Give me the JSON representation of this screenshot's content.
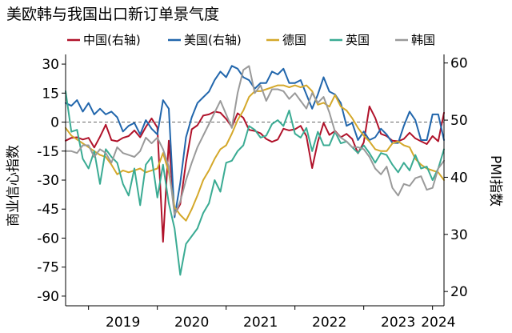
{
  "chart_data": {
    "type": "line",
    "title": "美欧韩与我国出口新订单景气度",
    "ylabel_left": "商业信心指数",
    "ylabel_right": "PMI指数",
    "ylim_left": [
      -95,
      35
    ],
    "yticks_left": [
      30,
      15,
      0,
      -15,
      -30,
      -45,
      -60,
      -75,
      -90
    ],
    "ylim_right": [
      17.5,
      61.5
    ],
    "yticks_right": [
      60,
      50,
      40,
      30,
      20
    ],
    "x_start": "2018-09",
    "x_end": "2024-03",
    "xticks": [
      "2019",
      "2020",
      "2021",
      "2022",
      "2023",
      "2024"
    ],
    "reference_line_left": 0,
    "legend_placement": "top",
    "series": [
      {
        "name": "中国(右轴)",
        "axis": "right",
        "color": "#b0122a",
        "dates": [
          "2018-09",
          "2018-10",
          "2018-11",
          "2018-12",
          "2019-01",
          "2019-02",
          "2019-03",
          "2019-04",
          "2019-05",
          "2019-06",
          "2019-07",
          "2019-08",
          "2019-09",
          "2019-10",
          "2019-11",
          "2019-12",
          "2020-01",
          "2020-02",
          "2020-03",
          "2020-04",
          "2020-05",
          "2020-06",
          "2020-07",
          "2020-08",
          "2020-09",
          "2020-10",
          "2020-11",
          "2020-12",
          "2021-01",
          "2021-02",
          "2021-03",
          "2021-04",
          "2021-05",
          "2021-06",
          "2021-07",
          "2021-08",
          "2021-09",
          "2021-10",
          "2021-11",
          "2021-12",
          "2022-01",
          "2022-02",
          "2022-03",
          "2022-04",
          "2022-05",
          "2022-06",
          "2022-07",
          "2022-08",
          "2022-09",
          "2022-10",
          "2022-11",
          "2022-12",
          "2023-01",
          "2023-02",
          "2023-03",
          "2023-04",
          "2023-05",
          "2023-06",
          "2023-07",
          "2023-08",
          "2023-09",
          "2023-10",
          "2023-11",
          "2023-12",
          "2024-01",
          "2024-02",
          "2024-03"
        ],
        "values": [
          46.4,
          46.9,
          47.0,
          46.6,
          46.9,
          45.2,
          47.1,
          49.2,
          46.5,
          46.3,
          46.9,
          47.2,
          48.2,
          47.0,
          48.8,
          50.3,
          48.7,
          28.7,
          46.4,
          33.5,
          35.3,
          42.6,
          48.4,
          49.1,
          50.8,
          51.0,
          51.5,
          51.3,
          50.2,
          48.8,
          51.2,
          50.4,
          48.3,
          48.1,
          47.7,
          46.7,
          46.2,
          46.6,
          48.5,
          48.2,
          48.4,
          49.0,
          47.2,
          41.6,
          46.2,
          49.5,
          47.4,
          48.1,
          47.0,
          47.6,
          46.7,
          44.2,
          46.1,
          52.4,
          50.4,
          47.6,
          47.2,
          46.4,
          46.3,
          46.7,
          47.8,
          46.8,
          46.3,
          45.8,
          47.2,
          46.3,
          51.3
        ]
      },
      {
        "name": "美国(右轴)",
        "axis": "right",
        "color": "#2166ac",
        "dates": [
          "2018-09",
          "2018-10",
          "2018-11",
          "2018-12",
          "2019-01",
          "2019-02",
          "2019-03",
          "2019-04",
          "2019-05",
          "2019-06",
          "2019-07",
          "2019-08",
          "2019-09",
          "2019-10",
          "2019-11",
          "2019-12",
          "2020-01",
          "2020-02",
          "2020-03",
          "2020-04",
          "2020-05",
          "2020-06",
          "2020-07",
          "2020-08",
          "2020-09",
          "2020-10",
          "2020-11",
          "2020-12",
          "2021-01",
          "2021-02",
          "2021-03",
          "2021-04",
          "2021-05",
          "2021-06",
          "2021-07",
          "2021-08",
          "2021-09",
          "2021-10",
          "2021-11",
          "2021-12",
          "2022-01",
          "2022-02",
          "2022-03",
          "2022-04",
          "2022-05",
          "2022-06",
          "2022-07",
          "2022-08",
          "2022-09",
          "2022-10",
          "2022-11",
          "2022-12",
          "2023-01",
          "2023-02",
          "2023-03",
          "2023-04",
          "2023-05",
          "2023-06",
          "2023-07",
          "2023-08",
          "2023-09",
          "2023-10",
          "2023-11",
          "2023-12",
          "2024-01",
          "2024-02",
          "2024-03"
        ],
        "values": [
          53.0,
          52.5,
          53.5,
          51.5,
          53.0,
          51.0,
          52.0,
          51.0,
          51.5,
          50.5,
          48.0,
          49.0,
          49.5,
          47.5,
          50.0,
          48.5,
          47.5,
          53.5,
          52.0,
          33.0,
          39.0,
          47.0,
          50.5,
          53.0,
          54.0,
          55.0,
          57.0,
          58.5,
          57.5,
          59.5,
          59.0,
          57.5,
          57.0,
          55.5,
          56.5,
          56.5,
          58.5,
          58.0,
          59.0,
          56.5,
          56.5,
          57.0,
          54.5,
          52.0,
          54.5,
          57.5,
          55.0,
          54.5,
          53.0,
          49.0,
          49.5,
          46.5,
          48.0,
          46.5,
          47.0,
          48.5,
          47.5,
          46.0,
          46.0,
          49.0,
          51.5,
          50.0,
          46.5,
          46.5,
          51.0,
          51.0,
          46.5
        ]
      },
      {
        "name": "德国",
        "axis": "left",
        "color": "#d4a82a",
        "dates": [
          "2018-09",
          "2018-10",
          "2018-11",
          "2018-12",
          "2019-01",
          "2019-02",
          "2019-03",
          "2019-04",
          "2019-05",
          "2019-06",
          "2019-07",
          "2019-08",
          "2019-09",
          "2019-10",
          "2019-11",
          "2019-12",
          "2020-01",
          "2020-02",
          "2020-03",
          "2020-04",
          "2020-05",
          "2020-06",
          "2020-07",
          "2020-08",
          "2020-09",
          "2020-10",
          "2020-11",
          "2020-12",
          "2021-01",
          "2021-02",
          "2021-03",
          "2021-04",
          "2021-05",
          "2021-06",
          "2021-07",
          "2021-08",
          "2021-09",
          "2021-10",
          "2021-11",
          "2021-12",
          "2022-01",
          "2022-02",
          "2022-03",
          "2022-04",
          "2022-05",
          "2022-06",
          "2022-07",
          "2022-08",
          "2022-09",
          "2022-10",
          "2022-11",
          "2022-12",
          "2023-01",
          "2023-02",
          "2023-03",
          "2023-04",
          "2023-05",
          "2023-06",
          "2023-07",
          "2023-08",
          "2023-09",
          "2023-10",
          "2023-11",
          "2023-12",
          "2024-01",
          "2024-02",
          "2024-03"
        ],
        "values": [
          -3,
          -7,
          -9,
          -11,
          -13,
          -15,
          -17,
          -18,
          -22,
          -27,
          -25,
          -26,
          -25,
          -24,
          -26,
          -25,
          -24,
          -16,
          -26,
          -44,
          -48,
          -51,
          -45,
          -38,
          -30,
          -25,
          -19,
          -14,
          -12,
          -6,
          1,
          6,
          13,
          16,
          16,
          17,
          18,
          19,
          19,
          18,
          19,
          18,
          19,
          16,
          9,
          10,
          8,
          14,
          8,
          6,
          2,
          -3,
          -7,
          -10,
          -14,
          -15,
          -15,
          -11,
          -10,
          -12,
          -13,
          -19,
          -22,
          -24,
          -25,
          -26,
          -30
        ]
      },
      {
        "name": "英国",
        "axis": "left",
        "color": "#3aab93",
        "dates": [
          "2018-09",
          "2018-10",
          "2018-11",
          "2018-12",
          "2019-01",
          "2019-02",
          "2019-03",
          "2019-04",
          "2019-05",
          "2019-06",
          "2019-07",
          "2019-08",
          "2019-09",
          "2019-10",
          "2019-11",
          "2019-12",
          "2020-01",
          "2020-02",
          "2020-03",
          "2020-04",
          "2020-05",
          "2020-06",
          "2020-07",
          "2020-08",
          "2020-09",
          "2020-10",
          "2020-11",
          "2020-12",
          "2021-01",
          "2021-02",
          "2021-03",
          "2021-04",
          "2021-05",
          "2021-06",
          "2021-07",
          "2021-08",
          "2021-09",
          "2021-10",
          "2021-11",
          "2021-12",
          "2022-01",
          "2022-02",
          "2022-03",
          "2022-04",
          "2022-05",
          "2022-06",
          "2022-07",
          "2022-08",
          "2022-09",
          "2022-10",
          "2022-11",
          "2022-12",
          "2023-01",
          "2023-02",
          "2023-03",
          "2023-04",
          "2023-05",
          "2023-06",
          "2023-07",
          "2023-08",
          "2023-09",
          "2023-10",
          "2023-11",
          "2023-12",
          "2024-01",
          "2024-02",
          "2024-03"
        ],
        "values": [
          16,
          -5,
          -4,
          -19,
          -24,
          -15,
          -32,
          -14,
          -18,
          -21,
          -32,
          -38,
          -24,
          -43,
          -22,
          -18,
          -39,
          -22,
          -42,
          -55,
          -79,
          -63,
          -59,
          -55,
          -47,
          -42,
          -30,
          -36,
          -21,
          -20,
          -15,
          -12,
          -2,
          -4,
          -8,
          -7,
          -1,
          1,
          -2,
          6,
          -6,
          -8,
          -3,
          -15,
          -5,
          -12,
          -12,
          -5,
          -11,
          -10,
          -13,
          -16,
          -12,
          -16,
          -21,
          -16,
          -17,
          -22,
          -26,
          -21,
          -25,
          -17,
          -24,
          -23,
          -30,
          -24,
          -14
        ]
      },
      {
        "name": "韩国",
        "axis": "left",
        "color": "#9a9a9a",
        "dates": [
          "2018-09",
          "2018-10",
          "2018-11",
          "2018-12",
          "2019-01",
          "2019-02",
          "2019-03",
          "2019-04",
          "2019-05",
          "2019-06",
          "2019-07",
          "2019-08",
          "2019-09",
          "2019-10",
          "2019-11",
          "2019-12",
          "2020-01",
          "2020-02",
          "2020-03",
          "2020-04",
          "2020-05",
          "2020-06",
          "2020-07",
          "2020-08",
          "2020-09",
          "2020-10",
          "2020-11",
          "2020-12",
          "2021-01",
          "2021-02",
          "2021-03",
          "2021-04",
          "2021-05",
          "2021-06",
          "2021-07",
          "2021-08",
          "2021-09",
          "2021-10",
          "2021-11",
          "2021-12",
          "2022-01",
          "2022-02",
          "2022-03",
          "2022-04",
          "2022-05",
          "2022-06",
          "2022-07",
          "2022-08",
          "2022-09",
          "2022-10",
          "2022-11",
          "2022-12",
          "2023-01",
          "2023-02",
          "2023-03",
          "2023-04",
          "2023-05",
          "2023-06",
          "2023-07",
          "2023-08",
          "2023-09",
          "2023-10",
          "2023-11",
          "2023-12",
          "2024-01",
          "2024-02",
          "2024-03"
        ],
        "values": [
          -15,
          -15,
          -16,
          -12,
          -12,
          -18,
          -14,
          -16,
          -21,
          -13,
          -16,
          -17,
          -18,
          -15,
          -8,
          -11,
          -8,
          -14,
          -23,
          -48,
          -41,
          -30,
          -21,
          -13,
          -7,
          -1,
          5,
          11,
          4,
          -3,
          15,
          27,
          29,
          15,
          19,
          11,
          17,
          17,
          16,
          12,
          15,
          11,
          7,
          15,
          10,
          13,
          5,
          -5,
          -8,
          -10,
          -13,
          -13,
          -14,
          -18,
          -24,
          -27,
          -23,
          -34,
          -38,
          -32,
          -33,
          -29,
          -28,
          -35,
          -34,
          -24,
          -20
        ]
      }
    ]
  }
}
